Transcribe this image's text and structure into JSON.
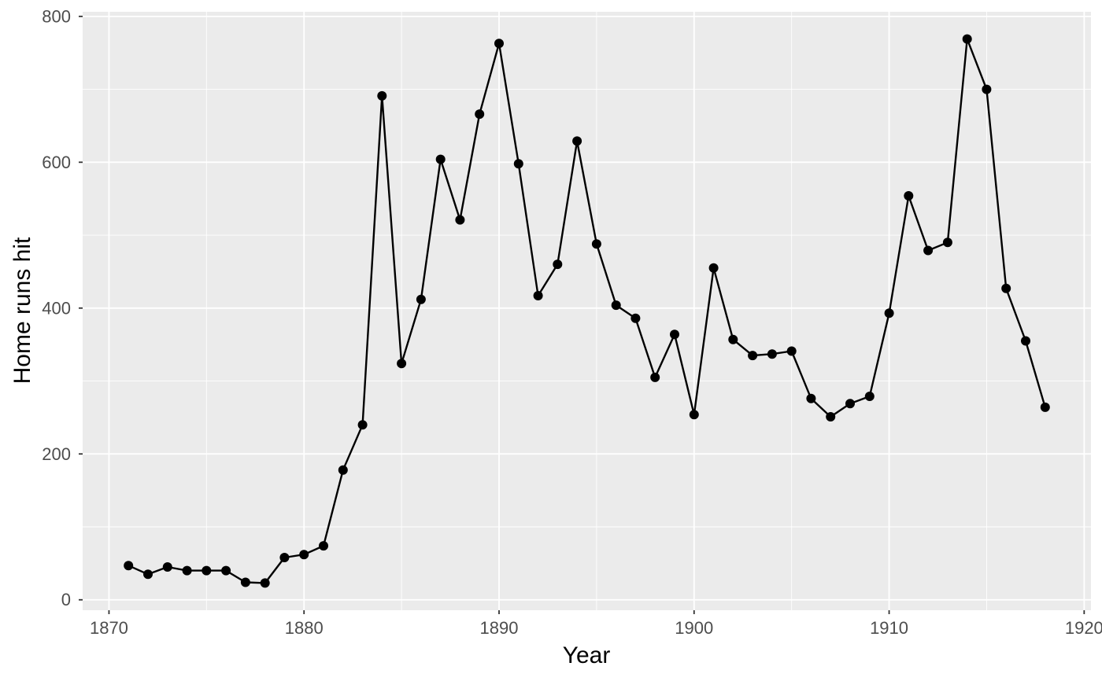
{
  "figure": {
    "background_color": "#FFFFFF",
    "panel_background_color": "#EBEBEB",
    "grid_major_color": "#FFFFFF",
    "grid_minor_color": "#FFFFFF",
    "data_color": "#000000",
    "tick_label_color": "#4D4D4D",
    "axis_title_color": "#000000",
    "tick_mark_color": "#333333"
  },
  "chart_data": {
    "type": "line",
    "title": "",
    "xlabel": "Year",
    "ylabel": "Home runs hit",
    "marker": "filled-circle",
    "legend": "none",
    "grid": "major-and-minor",
    "x_ticks": [
      1870,
      1880,
      1890,
      1900,
      1910,
      1920
    ],
    "y_ticks": [
      0,
      200,
      400,
      600,
      800
    ],
    "xlim": [
      1868.65,
      1920.35
    ],
    "ylim": [
      -14.3,
      806.3
    ],
    "series": [
      {
        "name": "Home runs hit",
        "x": [
          1871,
          1872,
          1873,
          1874,
          1875,
          1876,
          1877,
          1878,
          1879,
          1880,
          1881,
          1882,
          1883,
          1884,
          1885,
          1886,
          1887,
          1888,
          1889,
          1890,
          1891,
          1892,
          1893,
          1894,
          1895,
          1896,
          1897,
          1898,
          1899,
          1900,
          1901,
          1902,
          1903,
          1904,
          1905,
          1906,
          1907,
          1908,
          1909,
          1910,
          1911,
          1912,
          1913,
          1914,
          1915,
          1916,
          1917,
          1918
        ],
        "values": [
          47,
          35,
          45,
          40,
          40,
          40,
          24,
          23,
          58,
          62,
          74,
          178,
          240,
          691,
          324,
          412,
          604,
          521,
          666,
          763,
          598,
          417,
          460,
          629,
          488,
          404,
          386,
          305,
          364,
          254,
          455,
          357,
          335,
          337,
          341,
          276,
          251,
          269,
          279,
          393,
          554,
          479,
          490,
          769,
          700,
          427,
          355,
          264
        ]
      }
    ]
  }
}
